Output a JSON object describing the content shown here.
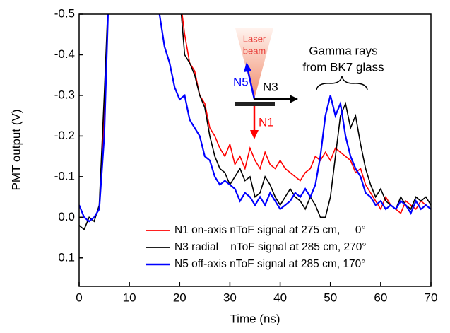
{
  "chart_data": {
    "type": "line",
    "xlabel": "Time (ns)",
    "ylabel": "PMT output (V)",
    "x": [
      0,
      1,
      2,
      3,
      4,
      5,
      6,
      7,
      8,
      9,
      10,
      11,
      12,
      13,
      14,
      15,
      16,
      17,
      18,
      19,
      20,
      21,
      22,
      23,
      24,
      25,
      26,
      27,
      28,
      29,
      30,
      31,
      32,
      33,
      34,
      35,
      36,
      37,
      38,
      39,
      40,
      41,
      42,
      43,
      44,
      45,
      46,
      47,
      48,
      49,
      50,
      51,
      52,
      53,
      54,
      55,
      56,
      57,
      58,
      59,
      60,
      61,
      62,
      63,
      64,
      65,
      66,
      67,
      68,
      69,
      70
    ],
    "series": [
      {
        "name": "N1 on-axis nToF signal at 275 cm,     0°",
        "color": "#ff0000",
        "values": [
          0.0,
          0.0,
          0.01,
          0.0,
          -0.02,
          -0.25,
          -0.6,
          null,
          null,
          null,
          null,
          null,
          null,
          null,
          null,
          null,
          null,
          null,
          null,
          null,
          -0.55,
          -0.45,
          -0.38,
          -0.36,
          -0.3,
          -0.28,
          -0.22,
          -0.2,
          -0.17,
          -0.15,
          -0.18,
          -0.13,
          -0.15,
          -0.12,
          -0.17,
          -0.14,
          -0.12,
          -0.16,
          -0.13,
          -0.12,
          -0.14,
          -0.12,
          -0.11,
          -0.1,
          -0.09,
          -0.11,
          -0.12,
          -0.15,
          -0.14,
          -0.16,
          -0.14,
          -0.17,
          -0.16,
          -0.15,
          -0.14,
          -0.11,
          -0.12,
          -0.08,
          -0.06,
          -0.04,
          -0.02,
          -0.05,
          -0.03,
          -0.02,
          -0.01,
          -0.04,
          -0.03,
          -0.02,
          -0.04,
          -0.03,
          -0.02
        ]
      },
      {
        "name": "N3 radial    nToF signal at 285 cm, 270°",
        "color": "#000000",
        "values": [
          0.02,
          0.03,
          0.0,
          0.01,
          -0.03,
          -0.3,
          -0.6,
          null,
          null,
          null,
          null,
          null,
          null,
          null,
          null,
          null,
          null,
          null,
          null,
          null,
          -0.55,
          -0.4,
          -0.38,
          -0.35,
          -0.3,
          -0.27,
          -0.2,
          -0.15,
          -0.12,
          -0.11,
          -0.08,
          -0.1,
          -0.12,
          -0.09,
          -0.1,
          -0.05,
          -0.06,
          -0.1,
          -0.08,
          -0.05,
          -0.03,
          -0.05,
          -0.07,
          -0.05,
          -0.04,
          -0.02,
          -0.05,
          -0.03,
          0.0,
          0.0,
          -0.05,
          -0.15,
          -0.25,
          -0.28,
          -0.22,
          -0.25,
          -0.18,
          -0.12,
          -0.08,
          -0.05,
          -0.07,
          -0.04,
          -0.03,
          -0.02,
          -0.05,
          -0.03,
          -0.02,
          -0.05,
          -0.04,
          -0.05,
          -0.03
        ]
      },
      {
        "name": "N5 off-axis nToF signal at 285 cm, 170°",
        "color": "#0000ff",
        "values": [
          -0.03,
          0.0,
          0.01,
          0.0,
          -0.02,
          -0.2,
          -0.6,
          null,
          null,
          null,
          null,
          null,
          null,
          null,
          null,
          null,
          -0.5,
          -0.42,
          -0.38,
          -0.32,
          -0.29,
          -0.3,
          -0.24,
          -0.22,
          -0.2,
          -0.15,
          -0.14,
          -0.1,
          -0.08,
          -0.09,
          -0.08,
          -0.07,
          -0.04,
          -0.06,
          -0.05,
          -0.03,
          -0.05,
          -0.03,
          -0.06,
          -0.04,
          -0.02,
          -0.03,
          -0.04,
          -0.06,
          -0.05,
          -0.07,
          -0.05,
          -0.08,
          -0.15,
          -0.25,
          -0.3,
          -0.25,
          -0.28,
          -0.2,
          -0.15,
          -0.12,
          -0.1,
          -0.06,
          -0.05,
          -0.03,
          -0.04,
          -0.02,
          -0.03,
          -0.02,
          -0.04,
          -0.03,
          -0.01,
          -0.04,
          -0.02,
          -0.03,
          -0.02
        ]
      }
    ],
    "xlim": [
      0,
      70
    ],
    "xticks": [
      0,
      10,
      20,
      30,
      40,
      50,
      60,
      70
    ],
    "ylim": [
      0.17,
      -0.5
    ],
    "yticks": [
      -0.5,
      -0.4,
      -0.3,
      -0.2,
      -0.1,
      {
        "value": 0,
        "label": "0.0"
      },
      0.1
    ],
    "annotations": [
      "Laser",
      "beam",
      "N5",
      "N3",
      "N1",
      "Gamma rays",
      "from BK7 glass"
    ]
  }
}
